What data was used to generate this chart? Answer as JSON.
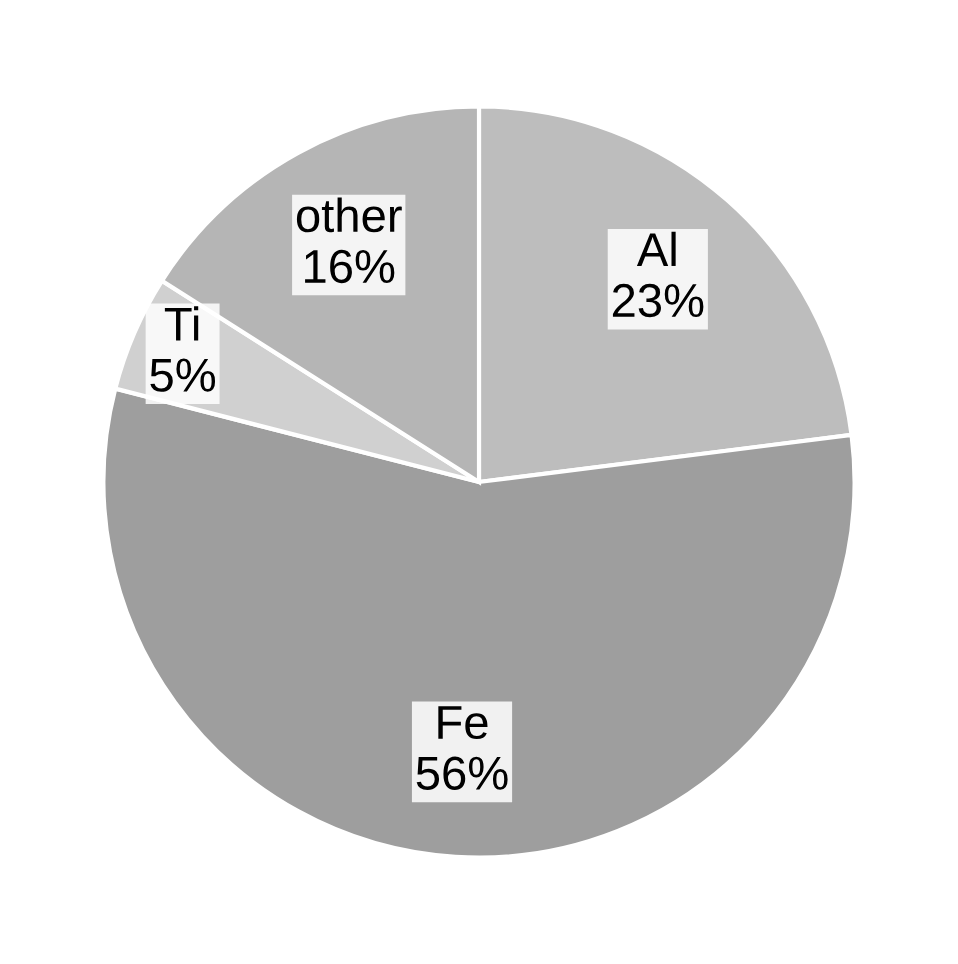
{
  "chart_data": {
    "type": "pie",
    "categories": [
      "Al",
      "Fe",
      "Ti",
      "other"
    ],
    "values": [
      23,
      56,
      5,
      16
    ],
    "colors": [
      "#bdbdbd",
      "#9e9e9e",
      "#d0d0d0",
      "#b5b5b5"
    ],
    "value_labels": [
      "23%",
      "56%",
      "5%",
      "16%"
    ],
    "legend": false
  }
}
